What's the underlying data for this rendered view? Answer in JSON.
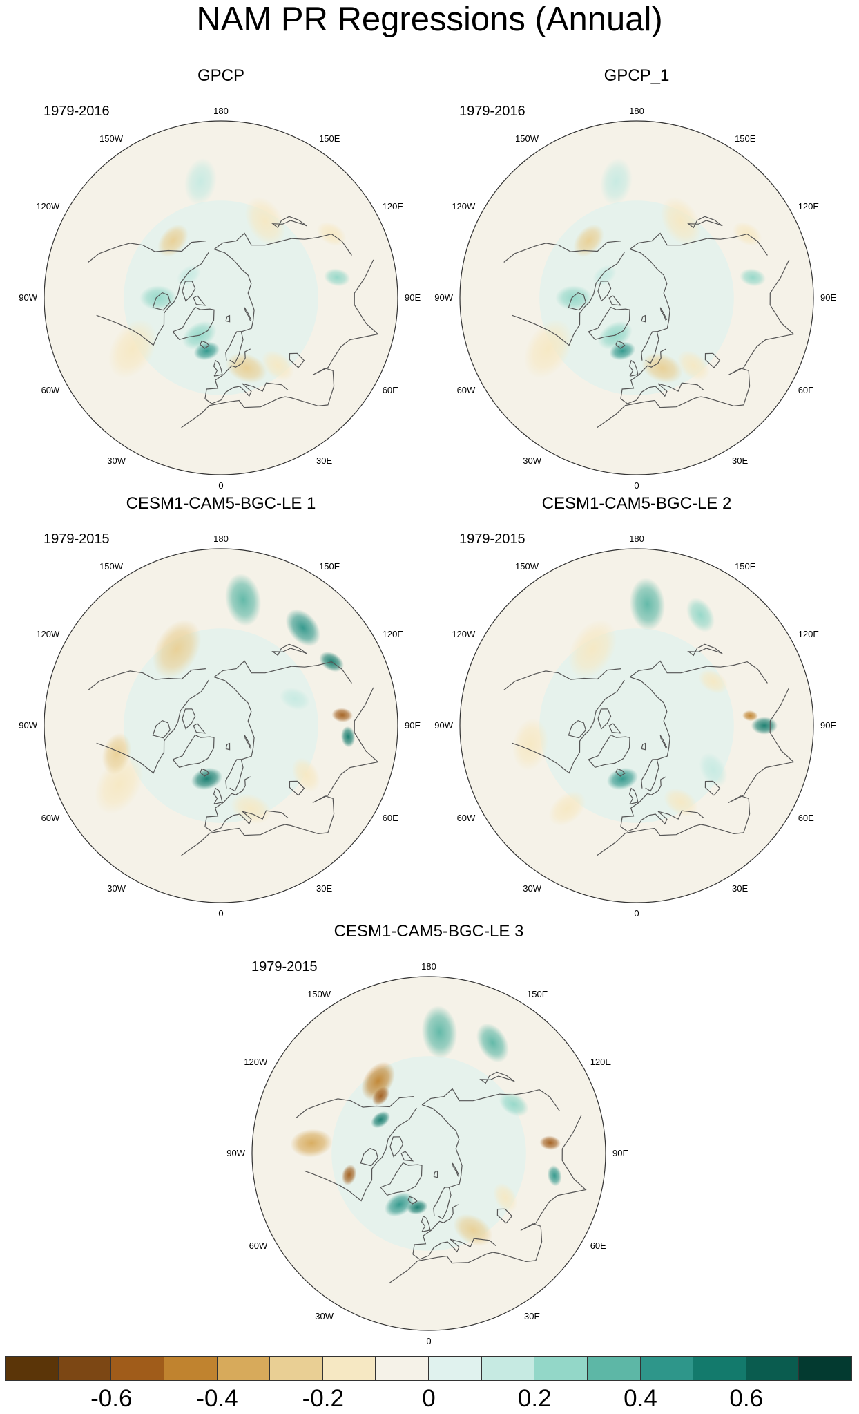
{
  "title": "NAM PR Regressions (Annual)",
  "colors": {
    "scale": [
      "#5b3508",
      "#7c4714",
      "#a05c1a",
      "#c0832f",
      "#d7aa5b",
      "#e9cf94",
      "#f6e8c3",
      "#f5f2e8",
      "#e0f2ee",
      "#c6eae2",
      "#93d7c8",
      "#5db7a6",
      "#2e968a",
      "#137a6c",
      "#0a5c4f",
      "#033a30"
    ],
    "coast": "#555555",
    "outline": "#333333"
  },
  "lon_labels": [
    "180",
    "150E",
    "120E",
    "90E",
    "60E",
    "30E",
    "0",
    "30W",
    "60W",
    "90W",
    "120W",
    "150W"
  ],
  "panels": [
    {
      "title": "GPCP",
      "period": "1979-2016",
      "features": [
        {
          "lon": -140,
          "lat": 52,
          "r": 0.07,
          "v": -0.3
        },
        {
          "lon": -125,
          "lat": 70,
          "r": 0.05,
          "v": 0.15
        },
        {
          "lon": -90,
          "lat": 58,
          "r": 0.07,
          "v": 0.2
        },
        {
          "lon": -60,
          "lat": 38,
          "r": 0.12,
          "v": -0.2
        },
        {
          "lon": -30,
          "lat": 68,
          "r": 0.07,
          "v": 0.25
        },
        {
          "lon": -15,
          "lat": 62,
          "r": 0.05,
          "v": 0.4
        },
        {
          "lon": 20,
          "lat": 52,
          "r": 0.08,
          "v": -0.3
        },
        {
          "lon": 40,
          "lat": 45,
          "r": 0.07,
          "v": -0.15
        },
        {
          "lon": 100,
          "lat": 30,
          "r": 0.05,
          "v": 0.2
        },
        {
          "lon": 150,
          "lat": 45,
          "r": 0.1,
          "v": -0.15
        },
        {
          "lon": -170,
          "lat": 30,
          "r": 0.09,
          "v": 0.15
        },
        {
          "lon": 120,
          "lat": 25,
          "r": 0.06,
          "v": -0.2
        }
      ]
    },
    {
      "title": "GPCP_1",
      "period": "1979-2016",
      "features": [
        {
          "lon": -140,
          "lat": 52,
          "r": 0.07,
          "v": -0.3
        },
        {
          "lon": -125,
          "lat": 70,
          "r": 0.05,
          "v": 0.15
        },
        {
          "lon": -90,
          "lat": 58,
          "r": 0.07,
          "v": 0.2
        },
        {
          "lon": -60,
          "lat": 38,
          "r": 0.12,
          "v": -0.2
        },
        {
          "lon": -30,
          "lat": 68,
          "r": 0.07,
          "v": 0.25
        },
        {
          "lon": -15,
          "lat": 62,
          "r": 0.05,
          "v": 0.4
        },
        {
          "lon": 20,
          "lat": 52,
          "r": 0.08,
          "v": -0.3
        },
        {
          "lon": 40,
          "lat": 45,
          "r": 0.07,
          "v": -0.15
        },
        {
          "lon": 100,
          "lat": 30,
          "r": 0.05,
          "v": 0.2
        },
        {
          "lon": 150,
          "lat": 45,
          "r": 0.1,
          "v": -0.15
        },
        {
          "lon": -170,
          "lat": 30,
          "r": 0.09,
          "v": 0.15
        },
        {
          "lon": 120,
          "lat": 25,
          "r": 0.06,
          "v": -0.2
        }
      ]
    },
    {
      "title": "CESM1-CAM5-BGC-LE 1",
      "period": "1979-2015",
      "features": [
        {
          "lon": 170,
          "lat": 25,
          "r": 0.1,
          "v": 0.35
        },
        {
          "lon": 140,
          "lat": 25,
          "r": 0.08,
          "v": 0.4
        },
        {
          "lon": 120,
          "lat": 25,
          "r": 0.05,
          "v": 0.5
        },
        {
          "lon": 95,
          "lat": 28,
          "r": 0.04,
          "v": -0.6
        },
        {
          "lon": 85,
          "lat": 25,
          "r": 0.04,
          "v": 0.5
        },
        {
          "lon": -150,
          "lat": 45,
          "r": 0.12,
          "v": -0.25
        },
        {
          "lon": -60,
          "lat": 30,
          "r": 0.12,
          "v": -0.2
        },
        {
          "lon": -75,
          "lat": 35,
          "r": 0.08,
          "v": -0.25
        },
        {
          "lon": -15,
          "lat": 62,
          "r": 0.06,
          "v": 0.5
        },
        {
          "lon": 20,
          "lat": 45,
          "r": 0.08,
          "v": -0.2
        },
        {
          "lon": 60,
          "lat": 40,
          "r": 0.07,
          "v": -0.2
        },
        {
          "lon": 110,
          "lat": 50,
          "r": 0.06,
          "v": 0.15
        }
      ]
    },
    {
      "title": "CESM1-CAM5-BGC-LE 2",
      "period": "1979-2015",
      "features": [
        {
          "lon": 175,
          "lat": 28,
          "r": 0.1,
          "v": 0.35
        },
        {
          "lon": 150,
          "lat": 25,
          "r": 0.07,
          "v": 0.2
        },
        {
          "lon": 90,
          "lat": 25,
          "r": 0.05,
          "v": 0.55
        },
        {
          "lon": 95,
          "lat": 32,
          "r": 0.03,
          "v": -0.45
        },
        {
          "lon": -150,
          "lat": 45,
          "r": 0.12,
          "v": -0.2
        },
        {
          "lon": -80,
          "lat": 35,
          "r": 0.1,
          "v": -0.2
        },
        {
          "lon": -40,
          "lat": 35,
          "r": 0.08,
          "v": -0.15
        },
        {
          "lon": -15,
          "lat": 62,
          "r": 0.06,
          "v": 0.45
        },
        {
          "lon": 120,
          "lat": 45,
          "r": 0.06,
          "v": -0.2
        },
        {
          "lon": 30,
          "lat": 45,
          "r": 0.07,
          "v": -0.15
        },
        {
          "lon": 60,
          "lat": 45,
          "r": 0.07,
          "v": 0.15
        }
      ]
    },
    {
      "title": "CESM1-CAM5-BGC-LE 3",
      "period": "1979-2015",
      "features": [
        {
          "lon": 175,
          "lat": 28,
          "r": 0.1,
          "v": 0.3
        },
        {
          "lon": 150,
          "lat": 25,
          "r": 0.08,
          "v": 0.35
        },
        {
          "lon": -145,
          "lat": 45,
          "r": 0.08,
          "v": -0.45
        },
        {
          "lon": -140,
          "lat": 52,
          "r": 0.04,
          "v": -0.55
        },
        {
          "lon": -125,
          "lat": 60,
          "r": 0.04,
          "v": 0.5
        },
        {
          "lon": -95,
          "lat": 30,
          "r": 0.08,
          "v": -0.35
        },
        {
          "lon": -75,
          "lat": 48,
          "r": 0.04,
          "v": -0.55
        },
        {
          "lon": -30,
          "lat": 60,
          "r": 0.06,
          "v": 0.4
        },
        {
          "lon": -12,
          "lat": 62,
          "r": 0.04,
          "v": 0.6
        },
        {
          "lon": 95,
          "lat": 28,
          "r": 0.04,
          "v": -0.6
        },
        {
          "lon": 80,
          "lat": 25,
          "r": 0.04,
          "v": 0.45
        },
        {
          "lon": 30,
          "lat": 45,
          "r": 0.08,
          "v": -0.25
        },
        {
          "lon": 60,
          "lat": 45,
          "r": 0.06,
          "v": -0.2
        },
        {
          "lon": 120,
          "lat": 40,
          "r": 0.06,
          "v": 0.2
        }
      ]
    }
  ],
  "colorbar": {
    "tick_labels": [
      "-0.6",
      "-0.4",
      "-0.2",
      "0",
      "0.2",
      "0.4",
      "0.6"
    ],
    "tick_values": [
      -0.6,
      -0.4,
      -0.2,
      0,
      0.2,
      0.4,
      0.6
    ],
    "min": -0.8,
    "max": 0.8
  }
}
